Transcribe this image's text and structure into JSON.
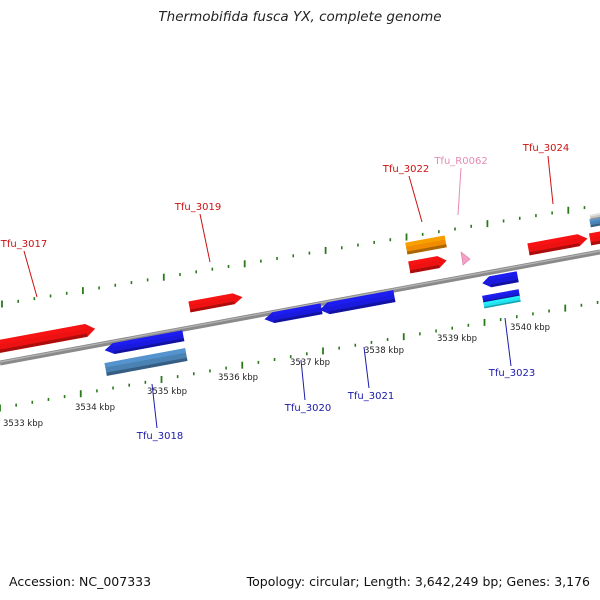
{
  "title": "Thermobifida fusca YX, complete genome",
  "footer": {
    "accession": "Accession: NC_007333",
    "summary": "Topology: circular; Length: 3,642,249 bp; Genes: 3,176"
  },
  "colors": {
    "forward_gene": "#ee1111",
    "reverse_gene": "#1a1adf",
    "rna": "#f5a0c5",
    "orange": "#f08c00",
    "steelblue": "#4a82b4",
    "cyan": "#22e0f0",
    "tick": "#2a7a1a",
    "axis": "#8a8a8a",
    "label_forward": "#cc1111",
    "label_reverse": "#1a1aaa",
    "label_rna": "#e48ab5"
  },
  "scale_labels": [
    "3533 kbp",
    "3534 kbp",
    "3535 kbp",
    "3536 kbp",
    "3537 kbp",
    "3538 kbp",
    "3539 kbp",
    "3540 kbp"
  ],
  "genes": [
    {
      "label": "Tfu_3017",
      "strand": "forward"
    },
    {
      "label": "Tfu_3018",
      "strand": "reverse"
    },
    {
      "label": "Tfu_3019",
      "strand": "forward"
    },
    {
      "label": "Tfu_3020",
      "strand": "reverse"
    },
    {
      "label": "Tfu_3021",
      "strand": "reverse"
    },
    {
      "label": "Tfu_3022",
      "strand": "forward"
    },
    {
      "label": "Tfu_R0062",
      "strand": "rna"
    },
    {
      "label": "Tfu_3023",
      "strand": "reverse"
    },
    {
      "label": "Tfu_3024",
      "strand": "forward"
    }
  ]
}
